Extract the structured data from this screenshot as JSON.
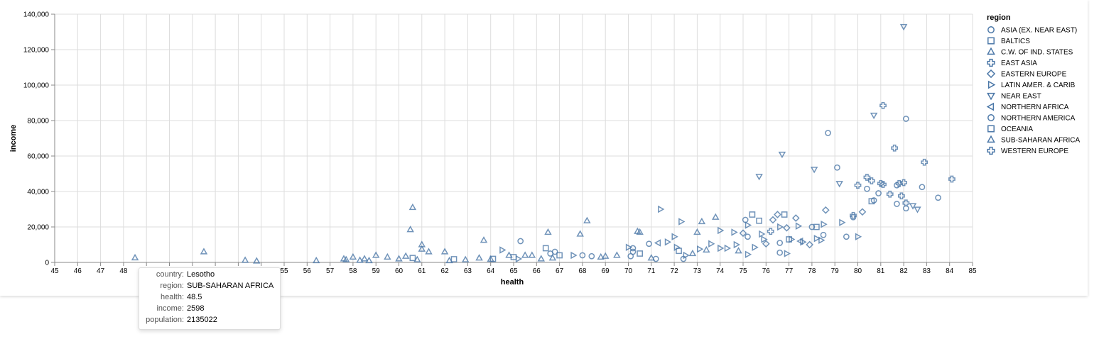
{
  "chart_data": {
    "type": "scatter",
    "xlabel": "health",
    "ylabel": "income",
    "xlim": [
      45,
      85
    ],
    "ylim": [
      0,
      140000
    ],
    "x_ticks": [
      "45",
      "46",
      "47",
      "48",
      "49",
      "50",
      "51",
      "52",
      "53",
      "54",
      "55",
      "56",
      "57",
      "58",
      "59",
      "60",
      "61",
      "62",
      "63",
      "64",
      "65",
      "66",
      "67",
      "68",
      "69",
      "70",
      "71",
      "72",
      "73",
      "74",
      "75",
      "76",
      "77",
      "78",
      "79",
      "80",
      "81",
      "82",
      "83",
      "84",
      "85"
    ],
    "y_ticks": [
      "0",
      "20,000",
      "40,000",
      "60,000",
      "80,000",
      "100,000",
      "120,000",
      "140,000"
    ],
    "grid": true,
    "mark_color": "#4c78a8",
    "legend": {
      "title": "region",
      "placement": "right",
      "entries": [
        {
          "label": "ASIA (EX. NEAR EAST)",
          "shape": "circle"
        },
        {
          "label": "BALTICS",
          "shape": "square"
        },
        {
          "label": "C.W. OF IND. STATES",
          "shape": "triangle-up"
        },
        {
          "label": "EAST ASIA",
          "shape": "cross"
        },
        {
          "label": "EASTERN EUROPE",
          "shape": "diamond"
        },
        {
          "label": "LATIN AMER. & CARIB",
          "shape": "triangle-right"
        },
        {
          "label": "NEAR EAST",
          "shape": "triangle-down"
        },
        {
          "label": "NORTHERN AFRICA",
          "shape": "triangle-left"
        },
        {
          "label": "NORTHERN AMERICA",
          "shape": "circle"
        },
        {
          "label": "OCEANIA",
          "shape": "square"
        },
        {
          "label": "SUB-SAHARAN AFRICA",
          "shape": "triangle-up"
        },
        {
          "label": "WESTERN EUROPE",
          "shape": "cross"
        }
      ]
    },
    "points": [
      {
        "x": 48.5,
        "y": 2598,
        "s": "triangle-up"
      },
      {
        "x": 51.5,
        "y": 6000,
        "s": "triangle-up"
      },
      {
        "x": 53.3,
        "y": 1200,
        "s": "triangle-up"
      },
      {
        "x": 53.8,
        "y": 800,
        "s": "triangle-up"
      },
      {
        "x": 56.4,
        "y": 1000,
        "s": "triangle-up"
      },
      {
        "x": 57.6,
        "y": 2000,
        "s": "triangle-up"
      },
      {
        "x": 57.7,
        "y": 1500,
        "s": "triangle-up"
      },
      {
        "x": 58.0,
        "y": 3000,
        "s": "triangle-up"
      },
      {
        "x": 58.3,
        "y": 1200,
        "s": "triangle-up"
      },
      {
        "x": 58.5,
        "y": 2000,
        "s": "triangle-up"
      },
      {
        "x": 58.7,
        "y": 1000,
        "s": "triangle-up"
      },
      {
        "x": 59.0,
        "y": 4000,
        "s": "triangle-up"
      },
      {
        "x": 59.5,
        "y": 3000,
        "s": "triangle-up"
      },
      {
        "x": 60.0,
        "y": 2000,
        "s": "triangle-up"
      },
      {
        "x": 60.3,
        "y": 3500,
        "s": "triangle-up"
      },
      {
        "x": 60.5,
        "y": 18500,
        "s": "triangle-up"
      },
      {
        "x": 60.6,
        "y": 31000,
        "s": "triangle-up"
      },
      {
        "x": 60.6,
        "y": 2500,
        "s": "square"
      },
      {
        "x": 60.8,
        "y": 1500,
        "s": "triangle-up"
      },
      {
        "x": 61.0,
        "y": 10000,
        "s": "triangle-up"
      },
      {
        "x": 61.0,
        "y": 7500,
        "s": "triangle-up"
      },
      {
        "x": 61.3,
        "y": 6000,
        "s": "triangle-up"
      },
      {
        "x": 62.0,
        "y": 6000,
        "s": "triangle-up"
      },
      {
        "x": 62.2,
        "y": 1000,
        "s": "triangle-up"
      },
      {
        "x": 62.4,
        "y": 1800,
        "s": "square"
      },
      {
        "x": 62.9,
        "y": 1500,
        "s": "triangle-up"
      },
      {
        "x": 63.5,
        "y": 2500,
        "s": "triangle-up"
      },
      {
        "x": 63.7,
        "y": 12500,
        "s": "triangle-up"
      },
      {
        "x": 64.0,
        "y": 1800,
        "s": "triangle-up"
      },
      {
        "x": 64.1,
        "y": 2000,
        "s": "square"
      },
      {
        "x": 64.5,
        "y": 7000,
        "s": "triangle-right"
      },
      {
        "x": 64.8,
        "y": 4000,
        "s": "triangle-up"
      },
      {
        "x": 65.0,
        "y": 3000,
        "s": "square"
      },
      {
        "x": 65.2,
        "y": 2000,
        "s": "triangle-right"
      },
      {
        "x": 65.3,
        "y": 12000,
        "s": "circle"
      },
      {
        "x": 65.5,
        "y": 4000,
        "s": "triangle-up"
      },
      {
        "x": 65.8,
        "y": 4000,
        "s": "triangle-up"
      },
      {
        "x": 66.2,
        "y": 2000,
        "s": "triangle-up"
      },
      {
        "x": 66.4,
        "y": 8000,
        "s": "square"
      },
      {
        "x": 66.5,
        "y": 17000,
        "s": "triangle-up"
      },
      {
        "x": 66.6,
        "y": 5000,
        "s": "circle"
      },
      {
        "x": 66.7,
        "y": 2500,
        "s": "triangle-up"
      },
      {
        "x": 66.8,
        "y": 6000,
        "s": "circle"
      },
      {
        "x": 67.0,
        "y": 4000,
        "s": "square"
      },
      {
        "x": 67.6,
        "y": 4000,
        "s": "triangle-right"
      },
      {
        "x": 67.9,
        "y": 16000,
        "s": "triangle-up"
      },
      {
        "x": 68.0,
        "y": 4000,
        "s": "circle"
      },
      {
        "x": 68.2,
        "y": 23500,
        "s": "triangle-up"
      },
      {
        "x": 68.4,
        "y": 3500,
        "s": "circle"
      },
      {
        "x": 68.8,
        "y": 3000,
        "s": "triangle-up"
      },
      {
        "x": 69.0,
        "y": 3500,
        "s": "triangle-up"
      },
      {
        "x": 69.5,
        "y": 4000,
        "s": "triangle-up"
      },
      {
        "x": 70.0,
        "y": 8500,
        "s": "triangle-right"
      },
      {
        "x": 70.1,
        "y": 3500,
        "s": "circle"
      },
      {
        "x": 70.2,
        "y": 6000,
        "s": "circle"
      },
      {
        "x": 70.2,
        "y": 8000,
        "s": "circle"
      },
      {
        "x": 70.4,
        "y": 17500,
        "s": "triangle-up"
      },
      {
        "x": 70.5,
        "y": 17000,
        "s": "triangle-up"
      },
      {
        "x": 70.5,
        "y": 5000,
        "s": "square"
      },
      {
        "x": 70.9,
        "y": 10500,
        "s": "circle"
      },
      {
        "x": 71.0,
        "y": 2500,
        "s": "triangle-up"
      },
      {
        "x": 71.2,
        "y": 2000,
        "s": "circle"
      },
      {
        "x": 71.3,
        "y": 11000,
        "s": "triangle-left"
      },
      {
        "x": 71.4,
        "y": 30000,
        "s": "triangle-right"
      },
      {
        "x": 71.7,
        "y": 11500,
        "s": "triangle-right"
      },
      {
        "x": 72.0,
        "y": 14500,
        "s": "triangle-right"
      },
      {
        "x": 72.1,
        "y": 8500,
        "s": "triangle-right"
      },
      {
        "x": 72.2,
        "y": 6500,
        "s": "square"
      },
      {
        "x": 72.3,
        "y": 23000,
        "s": "triangle-right"
      },
      {
        "x": 72.4,
        "y": 2000,
        "s": "circle"
      },
      {
        "x": 72.5,
        "y": 4000,
        "s": "triangle-right"
      },
      {
        "x": 72.8,
        "y": 5000,
        "s": "triangle-up"
      },
      {
        "x": 73.0,
        "y": 17000,
        "s": "triangle-up"
      },
      {
        "x": 73.2,
        "y": 23000,
        "s": "triangle-up"
      },
      {
        "x": 73.1,
        "y": 7500,
        "s": "triangle-right"
      },
      {
        "x": 73.4,
        "y": 7000,
        "s": "triangle-up"
      },
      {
        "x": 73.6,
        "y": 10500,
        "s": "triangle-right"
      },
      {
        "x": 73.8,
        "y": 25500,
        "s": "triangle-up"
      },
      {
        "x": 74.0,
        "y": 18000,
        "s": "triangle-right"
      },
      {
        "x": 74.0,
        "y": 8000,
        "s": "triangle-right"
      },
      {
        "x": 74.3,
        "y": 8000,
        "s": "triangle-right"
      },
      {
        "x": 74.6,
        "y": 17000,
        "s": "triangle-right"
      },
      {
        "x": 74.7,
        "y": 10000,
        "s": "triangle-right"
      },
      {
        "x": 74.8,
        "y": 6500,
        "s": "triangle-up"
      },
      {
        "x": 75.0,
        "y": 16500,
        "s": "diamond"
      },
      {
        "x": 75.1,
        "y": 24000,
        "s": "circle"
      },
      {
        "x": 75.2,
        "y": 21000,
        "s": "triangle-right"
      },
      {
        "x": 75.2,
        "y": 14500,
        "s": "circle"
      },
      {
        "x": 75.2,
        "y": 4500,
        "s": "triangle-right"
      },
      {
        "x": 75.4,
        "y": 27000,
        "s": "square"
      },
      {
        "x": 75.5,
        "y": 8500,
        "s": "triangle-right"
      },
      {
        "x": 75.7,
        "y": 48500,
        "s": "triangle-down"
      },
      {
        "x": 75.7,
        "y": 23500,
        "s": "square"
      },
      {
        "x": 75.8,
        "y": 16000,
        "s": "triangle-right"
      },
      {
        "x": 75.9,
        "y": 13000,
        "s": "triangle-right"
      },
      {
        "x": 76.0,
        "y": 10500,
        "s": "diamond"
      },
      {
        "x": 76.2,
        "y": 17500,
        "s": "cross"
      },
      {
        "x": 76.3,
        "y": 24000,
        "s": "diamond"
      },
      {
        "x": 76.5,
        "y": 27000,
        "s": "diamond"
      },
      {
        "x": 76.6,
        "y": 20000,
        "s": "triangle-right"
      },
      {
        "x": 76.6,
        "y": 11000,
        "s": "circle"
      },
      {
        "x": 76.6,
        "y": 5500,
        "s": "circle"
      },
      {
        "x": 76.7,
        "y": 61000,
        "s": "triangle-down"
      },
      {
        "x": 76.8,
        "y": 27000,
        "s": "square"
      },
      {
        "x": 76.9,
        "y": 19500,
        "s": "diamond"
      },
      {
        "x": 76.9,
        "y": 5000,
        "s": "triangle-right"
      },
      {
        "x": 77.0,
        "y": 13000,
        "s": "square"
      },
      {
        "x": 77.1,
        "y": 13000,
        "s": "triangle-right"
      },
      {
        "x": 77.3,
        "y": 25000,
        "s": "diamond"
      },
      {
        "x": 77.4,
        "y": 20500,
        "s": "triangle-right"
      },
      {
        "x": 77.5,
        "y": 12000,
        "s": "triangle-left"
      },
      {
        "x": 77.6,
        "y": 11500,
        "s": "triangle-right"
      },
      {
        "x": 77.9,
        "y": 10000,
        "s": "diamond"
      },
      {
        "x": 78.0,
        "y": 20000,
        "s": "circle"
      },
      {
        "x": 78.1,
        "y": 52500,
        "s": "triangle-down"
      },
      {
        "x": 78.2,
        "y": 20000,
        "s": "square"
      },
      {
        "x": 78.2,
        "y": 13500,
        "s": "triangle-right"
      },
      {
        "x": 78.4,
        "y": 12500,
        "s": "triangle-right"
      },
      {
        "x": 78.5,
        "y": 21500,
        "s": "triangle-right"
      },
      {
        "x": 78.5,
        "y": 15500,
        "s": "circle"
      },
      {
        "x": 78.6,
        "y": 29500,
        "s": "diamond"
      },
      {
        "x": 78.7,
        "y": 73000,
        "s": "circle"
      },
      {
        "x": 79.1,
        "y": 53500,
        "s": "circle"
      },
      {
        "x": 79.2,
        "y": 44500,
        "s": "triangle-down"
      },
      {
        "x": 79.3,
        "y": 22500,
        "s": "triangle-right"
      },
      {
        "x": 79.5,
        "y": 14500,
        "s": "circle"
      },
      {
        "x": 79.8,
        "y": 25500,
        "s": "circle"
      },
      {
        "x": 79.8,
        "y": 26500,
        "s": "cross"
      },
      {
        "x": 80.0,
        "y": 14500,
        "s": "triangle-right"
      },
      {
        "x": 80.0,
        "y": 43500,
        "s": "cross"
      },
      {
        "x": 80.2,
        "y": 28500,
        "s": "diamond"
      },
      {
        "x": 80.4,
        "y": 48000,
        "s": "cross"
      },
      {
        "x": 80.4,
        "y": 41500,
        "s": "circle"
      },
      {
        "x": 80.6,
        "y": 46000,
        "s": "cross"
      },
      {
        "x": 80.6,
        "y": 34500,
        "s": "square"
      },
      {
        "x": 80.7,
        "y": 83000,
        "s": "triangle-down"
      },
      {
        "x": 80.7,
        "y": 35000,
        "s": "circle"
      },
      {
        "x": 80.9,
        "y": 39000,
        "s": "circle"
      },
      {
        "x": 81.0,
        "y": 44500,
        "s": "cross"
      },
      {
        "x": 81.1,
        "y": 88500,
        "s": "cross"
      },
      {
        "x": 81.1,
        "y": 44000,
        "s": "cross"
      },
      {
        "x": 81.4,
        "y": 38500,
        "s": "cross"
      },
      {
        "x": 81.6,
        "y": 64500,
        "s": "cross"
      },
      {
        "x": 81.7,
        "y": 43500,
        "s": "circle"
      },
      {
        "x": 81.7,
        "y": 33000,
        "s": "circle"
      },
      {
        "x": 81.8,
        "y": 44500,
        "s": "cross"
      },
      {
        "x": 81.9,
        "y": 37500,
        "s": "cross"
      },
      {
        "x": 82.0,
        "y": 45000,
        "s": "cross"
      },
      {
        "x": 82.0,
        "y": 133000,
        "s": "triangle-down"
      },
      {
        "x": 82.1,
        "y": 81000,
        "s": "circle"
      },
      {
        "x": 82.1,
        "y": 33500,
        "s": "cross"
      },
      {
        "x": 82.1,
        "y": 30500,
        "s": "circle"
      },
      {
        "x": 82.4,
        "y": 32000,
        "s": "triangle-down"
      },
      {
        "x": 82.6,
        "y": 30000,
        "s": "triangle-down"
      },
      {
        "x": 82.8,
        "y": 42500,
        "s": "circle"
      },
      {
        "x": 82.9,
        "y": 56500,
        "s": "cross"
      },
      {
        "x": 83.5,
        "y": 36500,
        "s": "circle"
      },
      {
        "x": 84.1,
        "y": 47000,
        "s": "cross"
      }
    ]
  },
  "tooltip": {
    "rows": [
      {
        "key": "country:",
        "value": "Lesotho"
      },
      {
        "key": "region:",
        "value": "SUB-SAHARAN AFRICA"
      },
      {
        "key": "health:",
        "value": "48.5"
      },
      {
        "key": "income:",
        "value": "2598"
      },
      {
        "key": "population:",
        "value": "2135022"
      }
    ]
  }
}
